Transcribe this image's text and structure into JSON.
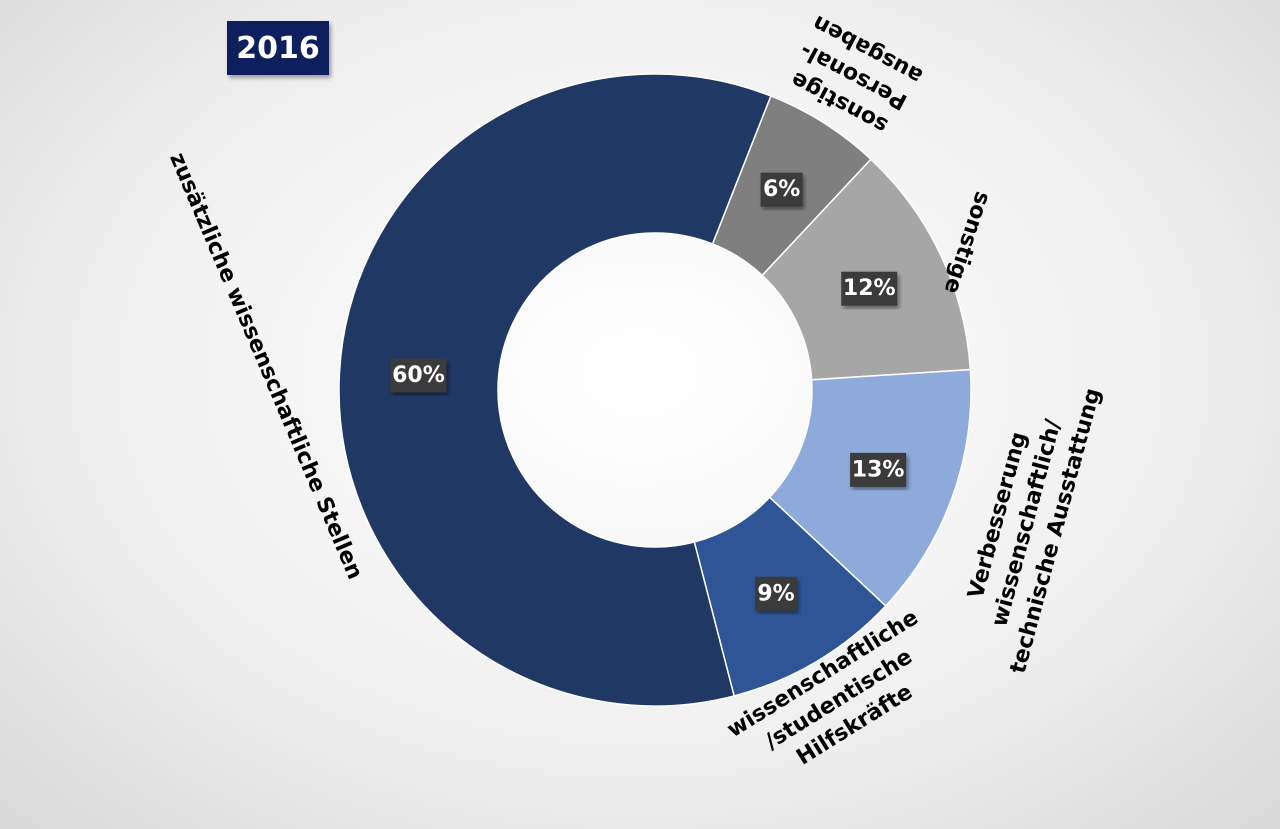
{
  "badge": "2016",
  "chart_data": {
    "type": "pie",
    "variant": "donut",
    "title": "",
    "slices": [
      {
        "label_lines": [
          "sonstige",
          "Personal-",
          "ausgaben"
        ],
        "value": 6,
        "value_label": "6%",
        "color": "#7f7f7f"
      },
      {
        "label_lines": [
          "sonstige"
        ],
        "value": 12,
        "value_label": "12%",
        "color": "#a6a6a6"
      },
      {
        "label_lines": [
          "Verbesserung",
          "wissenschaftlich/",
          "technische Ausstattung"
        ],
        "value": 13,
        "value_label": "13%",
        "color": "#8eaadb"
      },
      {
        "label_lines": [
          "wissenschaftliche",
          "/studentische",
          "Hilfskräfte"
        ],
        "value": 9,
        "value_label": "9%",
        "color": "#2f5597"
      },
      {
        "label_lines": [
          "zusätzliche wissenschaftliche Stellen"
        ],
        "value": 60,
        "value_label": "60%",
        "color": "#203864"
      }
    ]
  }
}
